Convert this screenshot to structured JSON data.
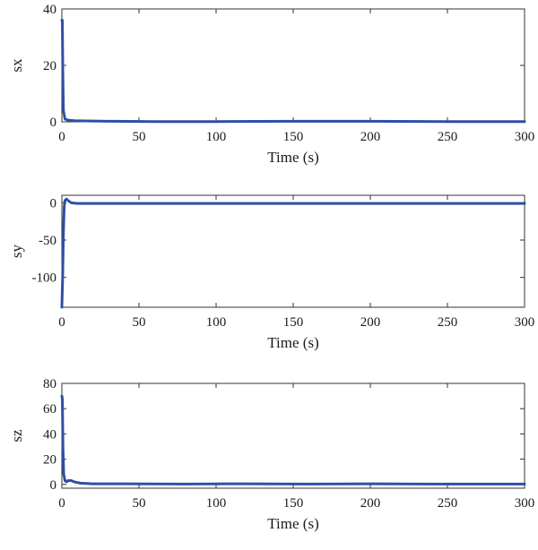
{
  "chart_data": [
    {
      "type": "line",
      "xlabel": "Time (s)",
      "ylabel": "sx",
      "xlim": [
        0,
        300
      ],
      "ylim": [
        0,
        40
      ],
      "xticks": [
        0,
        50,
        100,
        150,
        200,
        250,
        300
      ],
      "yticks": [
        0,
        20,
        40
      ],
      "grid": false,
      "color": "#2f4fa6",
      "series": [
        {
          "x": [
            0,
            0.3,
            0.6,
            1,
            2,
            4,
            8,
            15,
            30,
            60,
            100,
            150,
            200,
            250,
            300
          ],
          "values": [
            36,
            36,
            18,
            4,
            1,
            0.6,
            0.4,
            0.3,
            0.2,
            0.1,
            0.1,
            0.2,
            0.2,
            0.1,
            0.1
          ]
        }
      ]
    },
    {
      "type": "line",
      "xlabel": "Time (s)",
      "ylabel": "sy",
      "xlim": [
        0,
        300
      ],
      "ylim": [
        -140,
        10
      ],
      "xticks": [
        0,
        50,
        100,
        150,
        200,
        250,
        300
      ],
      "yticks": [
        -100,
        -50,
        0
      ],
      "grid": false,
      "color": "#2f4fa6",
      "series": [
        {
          "x": [
            0,
            0.5,
            1,
            1.5,
            2,
            3,
            4,
            6,
            10,
            20,
            50,
            100,
            150,
            200,
            250,
            300
          ],
          "values": [
            -140,
            -100,
            -40,
            -5,
            3,
            5,
            3,
            0,
            -1,
            -1,
            -1,
            -1,
            -1,
            -1,
            -1,
            -1
          ]
        }
      ]
    },
    {
      "type": "line",
      "xlabel": "Time (s)",
      "ylabel": "sz",
      "xlim": [
        0,
        300
      ],
      "ylim": [
        -3,
        80
      ],
      "xticks": [
        0,
        50,
        100,
        150,
        200,
        250,
        300
      ],
      "yticks": [
        0,
        20,
        40,
        60,
        80
      ],
      "grid": false,
      "color": "#2f4fa6",
      "series": [
        {
          "x": [
            0,
            0.3,
            0.7,
            1.2,
            2,
            3,
            4,
            6,
            8,
            12,
            20,
            40,
            80,
            120,
            160,
            200,
            240,
            300
          ],
          "values": [
            70,
            68,
            30,
            8,
            3,
            2,
            3,
            3,
            2,
            1,
            0.5,
            0.5,
            0.3,
            0.5,
            0.3,
            0.5,
            0.3,
            0.3
          ]
        }
      ]
    }
  ]
}
